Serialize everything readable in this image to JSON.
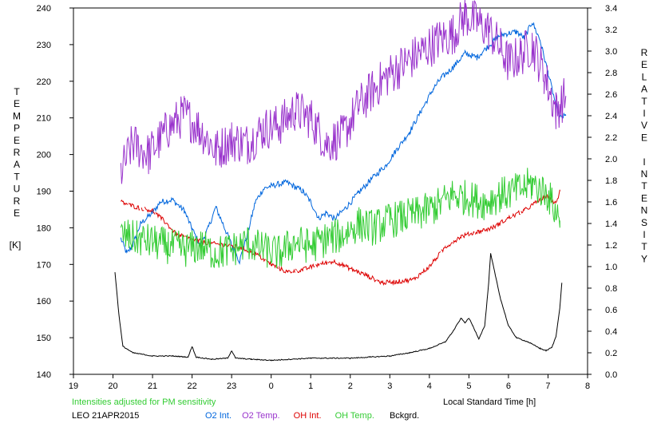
{
  "chart_data": {
    "type": "line",
    "station": "LEO",
    "date": "21APR2015",
    "note": "Intensities adjusted for PM sensitivity",
    "xlabel": "Local Standard Time [h]",
    "x_ticks": [
      "19",
      "20",
      "21",
      "22",
      "23",
      "0",
      "1",
      "2",
      "3",
      "4",
      "5",
      "6",
      "7",
      "8"
    ],
    "xlim": [
      19,
      32
    ],
    "left_axis": {
      "label_letters": [
        "T",
        "E",
        "M",
        "P",
        "E",
        "R",
        "A",
        "T",
        "U",
        "R",
        "E"
      ],
      "unit": "[K]",
      "ylim": [
        140,
        240
      ],
      "ticks": [
        "140",
        "150",
        "160",
        "170",
        "180",
        "190",
        "200",
        "210",
        "220",
        "230",
        "240"
      ]
    },
    "right_axis": {
      "label_words": [
        [
          "R",
          "E",
          "L",
          "A",
          "T",
          "I",
          "V",
          "E"
        ],
        [
          "I",
          "N",
          "T",
          "E",
          "N",
          "S",
          "I",
          "T",
          "Y"
        ]
      ],
      "ylim": [
        0.0,
        3.4
      ],
      "ticks": [
        "0.0",
        "0.2",
        "0.4",
        "0.6",
        "0.8",
        "1.0",
        "1.2",
        "1.4",
        "1.6",
        "1.8",
        "2.0",
        "2.2",
        "2.4",
        "2.6",
        "2.8",
        "3.0",
        "3.2",
        "3.4"
      ]
    },
    "series": [
      {
        "name": "O2 Int.",
        "axis": "right",
        "color": "#0066dd",
        "noise": 0.04,
        "points": [
          [
            20.2,
            1.26
          ],
          [
            20.35,
            1.12
          ],
          [
            20.5,
            1.2
          ],
          [
            20.7,
            1.4
          ],
          [
            21.0,
            1.5
          ],
          [
            21.2,
            1.6
          ],
          [
            21.5,
            1.62
          ],
          [
            21.8,
            1.52
          ],
          [
            22.0,
            1.35
          ],
          [
            22.2,
            1.2
          ],
          [
            22.4,
            1.35
          ],
          [
            22.6,
            1.55
          ],
          [
            22.8,
            1.38
          ],
          [
            23.0,
            1.2
          ],
          [
            23.2,
            1.05
          ],
          [
            23.4,
            1.3
          ],
          [
            23.6,
            1.6
          ],
          [
            23.8,
            1.72
          ],
          [
            24.0,
            1.75
          ],
          [
            24.4,
            1.78
          ],
          [
            24.8,
            1.7
          ],
          [
            25.0,
            1.6
          ],
          [
            25.2,
            1.45
          ],
          [
            25.4,
            1.5
          ],
          [
            25.6,
            1.44
          ],
          [
            25.9,
            1.55
          ],
          [
            26.2,
            1.68
          ],
          [
            26.5,
            1.8
          ],
          [
            26.9,
            1.94
          ],
          [
            27.2,
            2.1
          ],
          [
            27.5,
            2.25
          ],
          [
            27.8,
            2.45
          ],
          [
            28.1,
            2.65
          ],
          [
            28.3,
            2.75
          ],
          [
            28.6,
            2.85
          ],
          [
            28.9,
            2.98
          ],
          [
            29.2,
            2.94
          ],
          [
            29.5,
            3.05
          ],
          [
            29.8,
            3.15
          ],
          [
            30.2,
            3.18
          ],
          [
            30.4,
            3.12
          ],
          [
            30.6,
            3.27
          ],
          [
            30.8,
            3.1
          ],
          [
            31.0,
            2.8
          ],
          [
            31.2,
            2.5
          ],
          [
            31.3,
            2.38
          ],
          [
            31.45,
            2.4
          ]
        ]
      },
      {
        "name": "O2 Temp.",
        "axis": "left",
        "color": "#9933cc",
        "noise": 6,
        "points": [
          [
            20.2,
            195
          ],
          [
            20.5,
            203
          ],
          [
            20.9,
            200
          ],
          [
            21.4,
            207
          ],
          [
            21.8,
            211
          ],
          [
            22.2,
            207
          ],
          [
            22.6,
            201
          ],
          [
            23.0,
            204
          ],
          [
            23.4,
            203
          ],
          [
            23.8,
            207
          ],
          [
            24.2,
            208
          ],
          [
            24.6,
            212
          ],
          [
            25.0,
            210
          ],
          [
            25.4,
            203
          ],
          [
            25.8,
            205
          ],
          [
            26.2,
            213
          ],
          [
            26.6,
            218
          ],
          [
            27.0,
            222
          ],
          [
            27.4,
            225
          ],
          [
            27.8,
            228
          ],
          [
            28.2,
            231
          ],
          [
            28.6,
            233
          ],
          [
            28.9,
            238
          ],
          [
            29.2,
            236
          ],
          [
            29.5,
            234
          ],
          [
            29.8,
            229
          ],
          [
            30.0,
            225
          ],
          [
            30.3,
            227
          ],
          [
            30.6,
            230
          ],
          [
            30.9,
            222
          ],
          [
            31.2,
            212
          ],
          [
            31.45,
            216
          ]
        ]
      },
      {
        "name": "OH Int.",
        "axis": "right",
        "color": "#dd0000",
        "noise": 0.03,
        "points": [
          [
            20.2,
            1.6
          ],
          [
            20.6,
            1.55
          ],
          [
            21.0,
            1.52
          ],
          [
            21.3,
            1.42
          ],
          [
            21.6,
            1.3
          ],
          [
            22.0,
            1.25
          ],
          [
            22.4,
            1.22
          ],
          [
            22.8,
            1.2
          ],
          [
            23.2,
            1.18
          ],
          [
            23.6,
            1.12
          ],
          [
            24.0,
            1.02
          ],
          [
            24.4,
            0.95
          ],
          [
            24.8,
            0.97
          ],
          [
            25.2,
            1.02
          ],
          [
            25.6,
            1.05
          ],
          [
            26.0,
            0.98
          ],
          [
            26.4,
            0.92
          ],
          [
            26.8,
            0.85
          ],
          [
            27.2,
            0.86
          ],
          [
            27.6,
            0.88
          ],
          [
            28.0,
            1.0
          ],
          [
            28.4,
            1.18
          ],
          [
            28.8,
            1.28
          ],
          [
            29.2,
            1.32
          ],
          [
            29.6,
            1.36
          ],
          [
            30.0,
            1.45
          ],
          [
            30.4,
            1.52
          ],
          [
            30.8,
            1.62
          ],
          [
            31.0,
            1.65
          ],
          [
            31.2,
            1.58
          ],
          [
            31.3,
            1.7
          ]
        ]
      },
      {
        "name": "OH Temp.",
        "axis": "left",
        "color": "#33cc33",
        "noise": 5,
        "points": [
          [
            20.2,
            178
          ],
          [
            20.6,
            177
          ],
          [
            21.0,
            176
          ],
          [
            21.4,
            175
          ],
          [
            21.8,
            174
          ],
          [
            22.2,
            175
          ],
          [
            22.6,
            173
          ],
          [
            23.0,
            174
          ],
          [
            23.4,
            176
          ],
          [
            23.8,
            174
          ],
          [
            24.2,
            173
          ],
          [
            24.6,
            176
          ],
          [
            25.0,
            175
          ],
          [
            25.4,
            177
          ],
          [
            25.8,
            178
          ],
          [
            26.2,
            181
          ],
          [
            26.6,
            180
          ],
          [
            27.0,
            182
          ],
          [
            27.4,
            183
          ],
          [
            27.8,
            184
          ],
          [
            28.2,
            186
          ],
          [
            28.6,
            189
          ],
          [
            29.0,
            188
          ],
          [
            29.4,
            187
          ],
          [
            29.8,
            189
          ],
          [
            30.2,
            190
          ],
          [
            30.6,
            192
          ],
          [
            31.0,
            189
          ],
          [
            31.3,
            182
          ]
        ]
      },
      {
        "name": "Bckgrd.",
        "axis": "right",
        "color": "#000000",
        "noise": 0.006,
        "points": [
          [
            20.05,
            0.95
          ],
          [
            20.15,
            0.55
          ],
          [
            20.25,
            0.26
          ],
          [
            20.5,
            0.2
          ],
          [
            21.0,
            0.17
          ],
          [
            21.5,
            0.17
          ],
          [
            21.9,
            0.16
          ],
          [
            22.0,
            0.26
          ],
          [
            22.1,
            0.16
          ],
          [
            22.5,
            0.14
          ],
          [
            22.9,
            0.15
          ],
          [
            23.0,
            0.22
          ],
          [
            23.1,
            0.15
          ],
          [
            23.5,
            0.14
          ],
          [
            24.0,
            0.13
          ],
          [
            24.5,
            0.14
          ],
          [
            25.0,
            0.15
          ],
          [
            25.5,
            0.15
          ],
          [
            26.0,
            0.15
          ],
          [
            26.5,
            0.16
          ],
          [
            27.0,
            0.17
          ],
          [
            27.5,
            0.2
          ],
          [
            28.0,
            0.24
          ],
          [
            28.4,
            0.3
          ],
          [
            28.6,
            0.4
          ],
          [
            28.8,
            0.52
          ],
          [
            28.9,
            0.48
          ],
          [
            29.0,
            0.52
          ],
          [
            29.1,
            0.45
          ],
          [
            29.25,
            0.33
          ],
          [
            29.4,
            0.45
          ],
          [
            29.5,
            0.85
          ],
          [
            29.55,
            1.12
          ],
          [
            29.65,
            0.95
          ],
          [
            29.8,
            0.7
          ],
          [
            30.0,
            0.45
          ],
          [
            30.2,
            0.34
          ],
          [
            30.5,
            0.3
          ],
          [
            30.8,
            0.24
          ],
          [
            30.95,
            0.22
          ],
          [
            31.1,
            0.25
          ],
          [
            31.2,
            0.35
          ],
          [
            31.3,
            0.62
          ],
          [
            31.35,
            0.85
          ]
        ]
      }
    ],
    "legend_placement": "bottom"
  }
}
